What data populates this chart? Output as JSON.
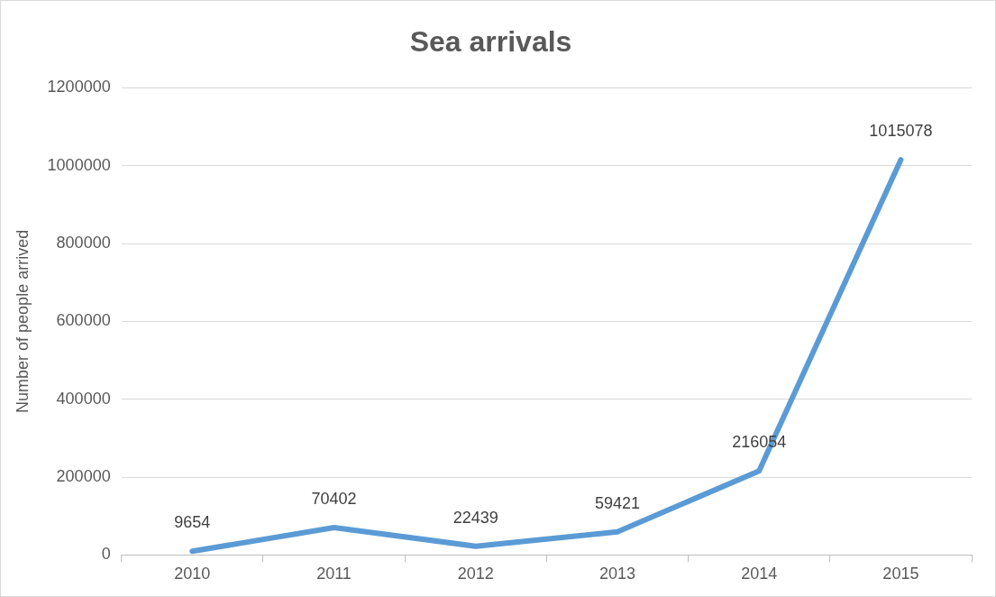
{
  "chart_data": {
    "type": "line",
    "title": "Sea arrivals",
    "ylabel": "Number of people arrived",
    "categories": [
      "2010",
      "2011",
      "2012",
      "2013",
      "2014",
      "2015"
    ],
    "series": [
      {
        "color": "#5b9bd5",
        "values": [
          9654,
          70402,
          22439,
          59421,
          216054,
          1015078
        ]
      }
    ],
    "ylim": [
      0,
      1200000
    ],
    "yticks": [
      0,
      200000,
      400000,
      600000,
      800000,
      1000000,
      1200000
    ],
    "grid": "y",
    "legend": false,
    "marker": "none",
    "line_style": "solid",
    "data_labels": true
  }
}
